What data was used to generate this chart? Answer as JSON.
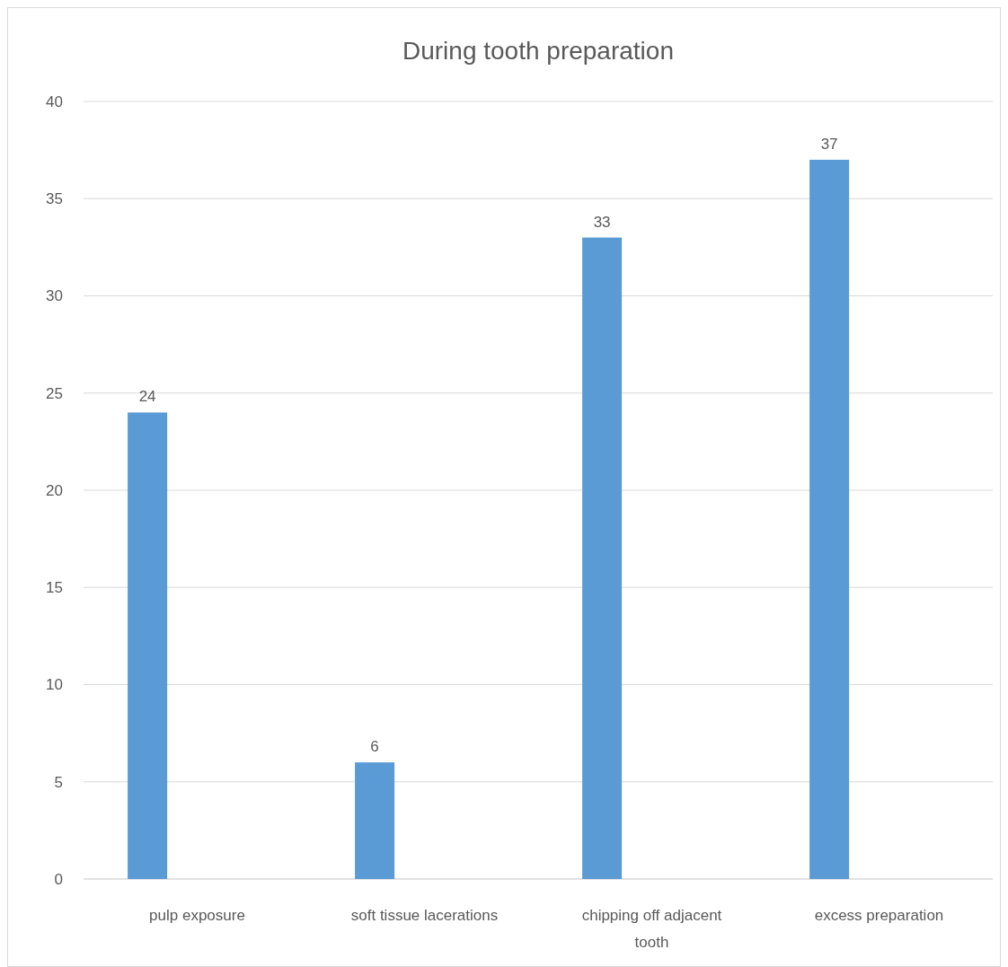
{
  "chart_data": {
    "type": "bar",
    "title": "During tooth preparation",
    "categories": [
      "pulp exposure",
      "soft tissue lacerations",
      "chipping off adjacent tooth",
      "excess preparation"
    ],
    "values": [
      24,
      6,
      33,
      37
    ],
    "color": "#5b9bd5",
    "ylim": [
      0,
      40
    ],
    "yticks": [
      0,
      5,
      10,
      15,
      20,
      25,
      30,
      35,
      40
    ],
    "grid": true,
    "data_labels": true
  }
}
